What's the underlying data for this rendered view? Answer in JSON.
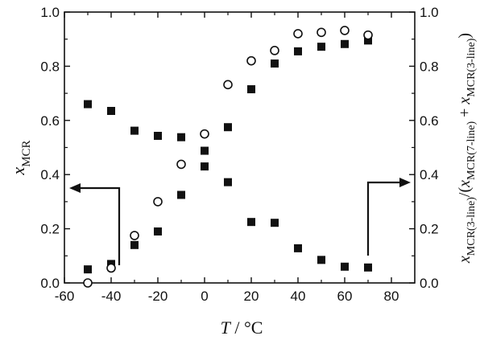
{
  "chart_data": {
    "type": "scatter",
    "title": "",
    "xlabel": {
      "var": "T",
      "unit": " / °C"
    },
    "ylabel_left": {
      "var": "x",
      "sub": "MCR"
    },
    "ylabel_right": {
      "p1_var": "x",
      "p1_sub": "MCR(3-line)",
      "p2": "/(",
      "p3_var": "x",
      "p3_sub": "MCR(7-line)",
      "p4": " + ",
      "p5_var": "x",
      "p5_sub": "MCR(3-line)",
      "p6": ")"
    },
    "xlim": [
      -60,
      90
    ],
    "ylim_left": [
      0.0,
      1.0
    ],
    "ylim_right": [
      0.0,
      1.0
    ],
    "xticks": [
      -60,
      -40,
      -20,
      0,
      20,
      40,
      60,
      80
    ],
    "xtick_labels": [
      "-60",
      "-40",
      "-20",
      "0",
      "20",
      "40",
      "60",
      "80"
    ],
    "yticks": [
      0.0,
      0.2,
      0.4,
      0.6,
      0.8,
      1.0
    ],
    "ytick_labels": [
      "0.0",
      "0.2",
      "0.4",
      "0.6",
      "0.8",
      "1.0"
    ],
    "grid": false,
    "series": [
      {
        "marker": "filled-square",
        "axis": "left",
        "x": [
          -50,
          -40,
          -30,
          -20,
          -10,
          0,
          10,
          20,
          30,
          40,
          50,
          60,
          70
        ],
        "y": [
          0.66,
          0.635,
          0.562,
          0.543,
          0.538,
          0.488,
          0.372,
          0.225,
          0.222,
          0.128,
          0.085,
          0.06,
          0.057
        ]
      },
      {
        "marker": "filled-square",
        "axis": "right",
        "x": [
          -50,
          -40,
          -30,
          -20,
          -10,
          0,
          10,
          20,
          30,
          40,
          50,
          60,
          70
        ],
        "y": [
          0.05,
          0.07,
          0.14,
          0.19,
          0.325,
          0.43,
          0.575,
          0.715,
          0.81,
          0.855,
          0.872,
          0.882,
          0.895
        ]
      },
      {
        "marker": "open-circle",
        "axis": "right",
        "x": [
          -50,
          -40,
          -30,
          -20,
          -10,
          0,
          10,
          20,
          30,
          40,
          50,
          60,
          70
        ],
        "y": [
          0.0,
          0.055,
          0.175,
          0.3,
          0.438,
          0.55,
          0.732,
          0.82,
          0.858,
          0.92,
          0.925,
          0.932,
          0.915
        ]
      }
    ],
    "annotations": [
      {
        "type": "arrow",
        "points_to": "left-axis"
      },
      {
        "type": "arrow",
        "points_to": "right-axis"
      }
    ]
  }
}
